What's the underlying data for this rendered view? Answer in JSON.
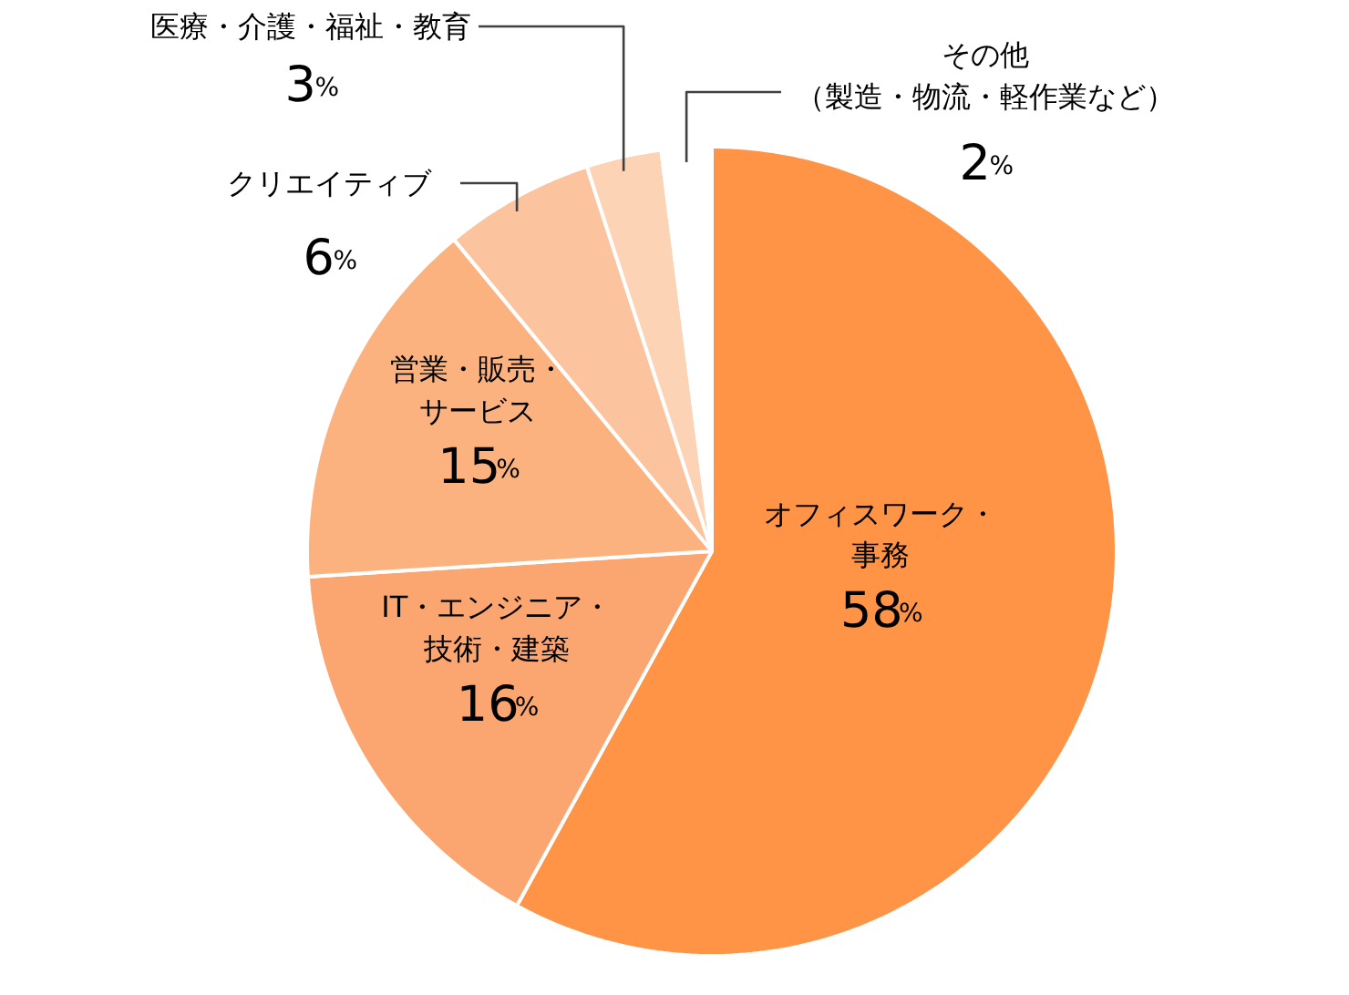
{
  "chart_data": {
    "type": "pie",
    "categories": [
      "オフィスワーク・事務",
      "IT・エンジニア・技術・建築",
      "営業・販売・サービス",
      "クリエイティブ",
      "医療・介護・福祉・教育",
      "その他（製造・物流・軽作業など）"
    ],
    "values": [
      58,
      16,
      15,
      6,
      3,
      2
    ],
    "colors": [
      "#ff9447",
      "#fba570",
      "#fbb27f",
      "#fcc49e",
      "#fdd3b6",
      "#ffffff"
    ],
    "value_labels": [
      "58%",
      "16%",
      "15%",
      "6%",
      "3%",
      "2%"
    ]
  }
}
